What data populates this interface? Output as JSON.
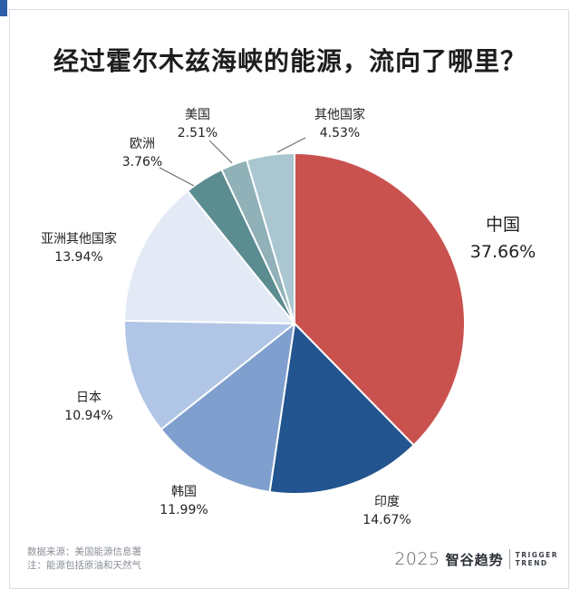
{
  "header": {
    "title": "经过霍尔木兹海峡的能源，流向了哪里？"
  },
  "chart_data": {
    "type": "pie",
    "title": "经过霍尔木兹海峡的能源，流向了哪里？",
    "start": "12 o'clock, clockwise",
    "slices": [
      {
        "name": "中国",
        "value": 37.66,
        "label": "37.66%",
        "color": "#c9524f"
      },
      {
        "name": "印度",
        "value": 14.67,
        "label": "14.67%",
        "color": "#22548f"
      },
      {
        "name": "韩国",
        "value": 11.99,
        "label": "11.99%",
        "color": "#7f9fce"
      },
      {
        "name": "日本",
        "value": 10.94,
        "label": "10.94%",
        "color": "#b1c6e6"
      },
      {
        "name": "亚洲其他国家",
        "value": 13.94,
        "label": "13.94%",
        "color": "#e3eaf6"
      },
      {
        "name": "欧洲",
        "value": 3.76,
        "label": "3.76%",
        "color": "#5b8c8f"
      },
      {
        "name": "美国",
        "value": 2.51,
        "label": "2.51%",
        "color": "#8fb1b7"
      },
      {
        "name": "其他国家",
        "value": 4.53,
        "label": "4.53%",
        "color": "#aac7d1"
      }
    ]
  },
  "footer": {
    "source": "数据来源：美国能源信息署",
    "note": "注：能源包括原油和天然气",
    "brand_year": "2025",
    "brand_name": "智谷趋势",
    "brand_en_1": "TRIGGER",
    "brand_en_2": "TREND"
  }
}
